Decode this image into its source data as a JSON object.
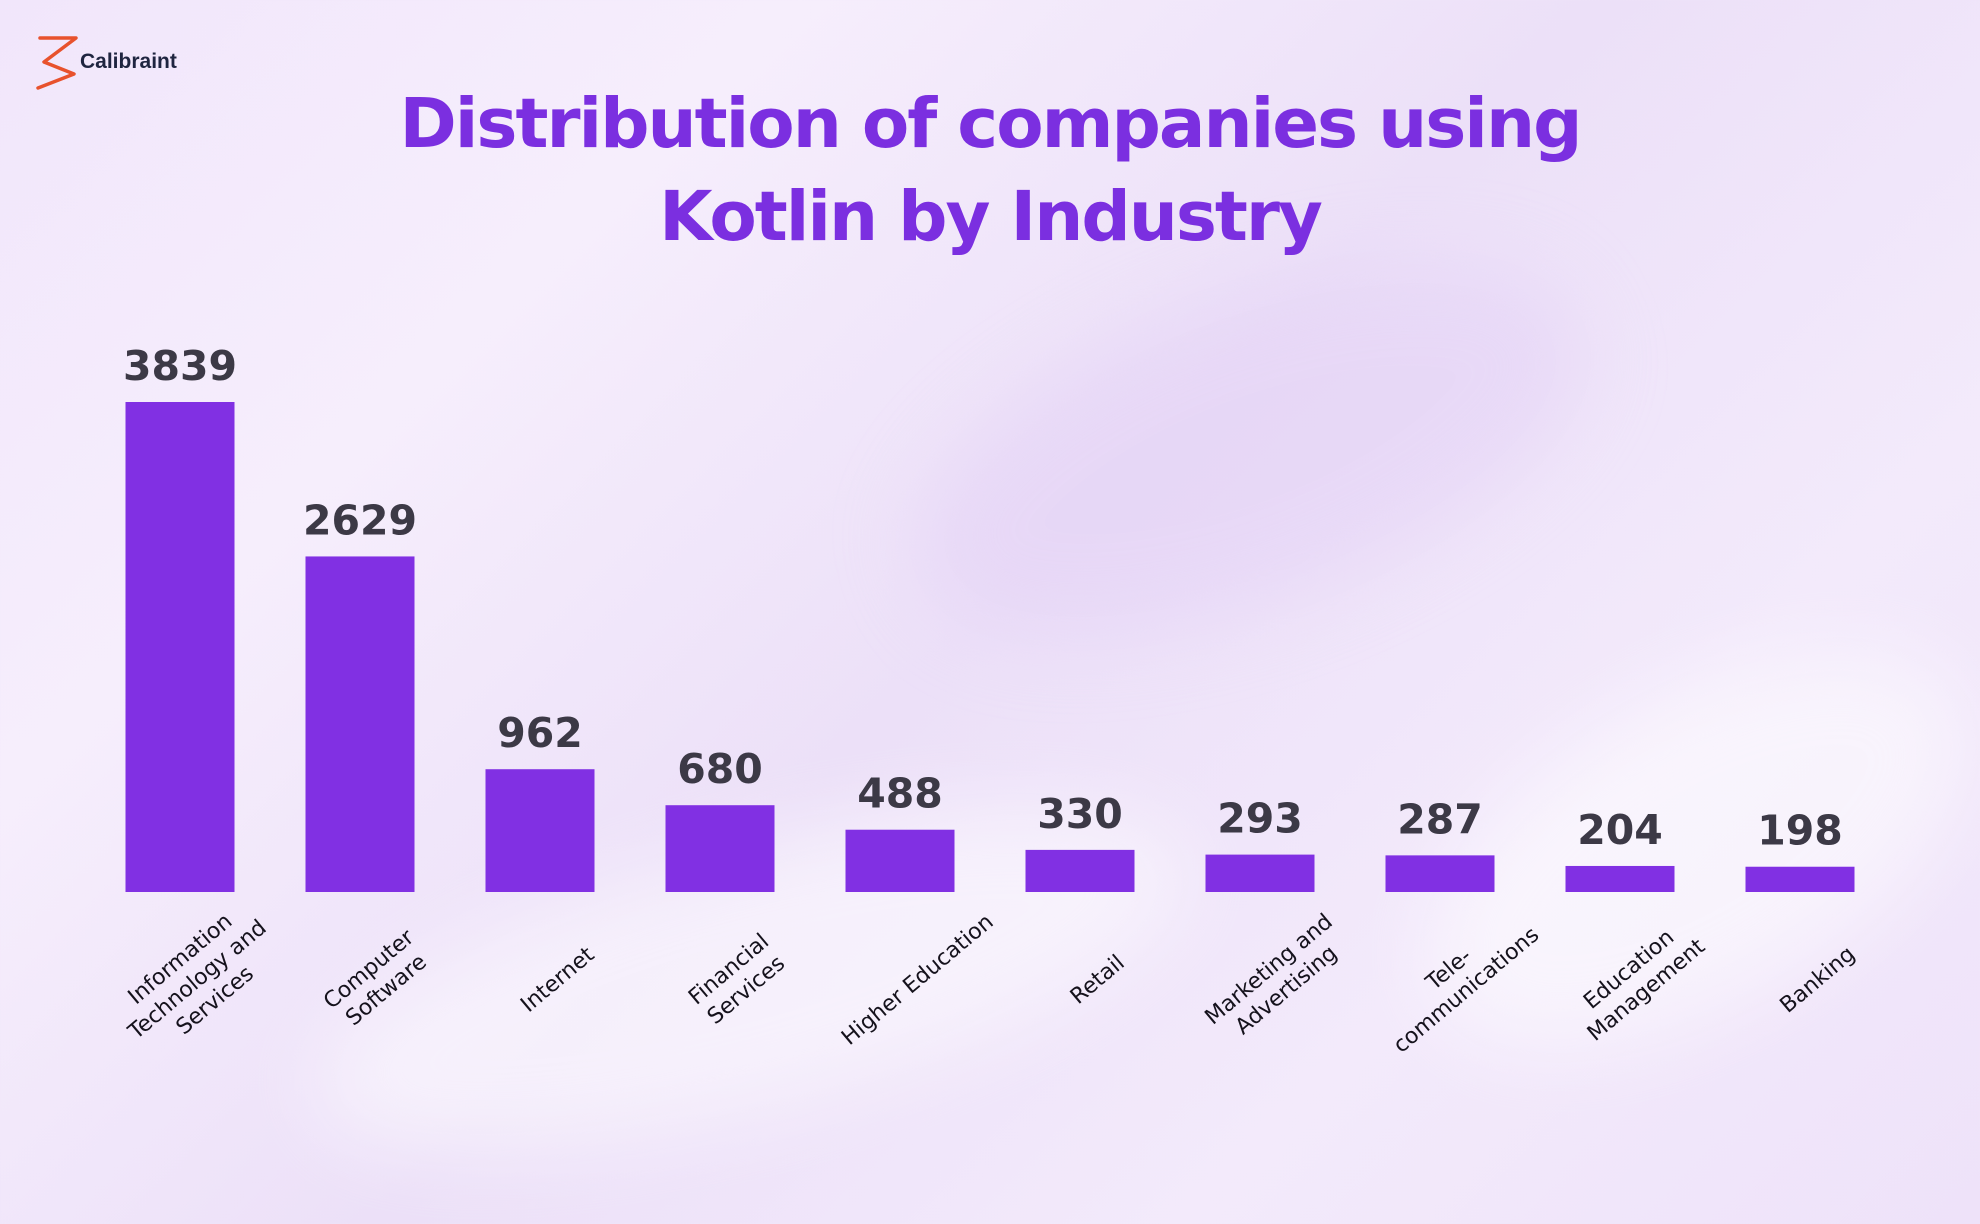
{
  "brand": {
    "name": "Calibraint",
    "logo_icon": "z-logo-icon",
    "logo_color": "#e8522d"
  },
  "colors": {
    "bar": "#8130e3",
    "title": "#7b2fe0"
  },
  "chart_data": {
    "type": "bar",
    "title_lines": [
      "Distribution of companies using",
      "Kotlin by Industry"
    ],
    "xlabel": "",
    "ylabel": "",
    "grid": false,
    "legend": "none",
    "ylim": [
      0,
      3839
    ],
    "categories": [
      [
        "Information",
        "Technology and",
        "Services"
      ],
      [
        "Computer",
        "Software"
      ],
      [
        "Internet"
      ],
      [
        "Financial",
        "Services"
      ],
      [
        "Higher Education"
      ],
      [
        "Retail"
      ],
      [
        "Marketing and",
        "Advertising"
      ],
      [
        "Tele-",
        "communications"
      ],
      [
        "Education",
        "Management"
      ],
      [
        "Banking"
      ]
    ],
    "values": [
      3839,
      2629,
      962,
      680,
      488,
      330,
      293,
      287,
      204,
      198
    ]
  }
}
